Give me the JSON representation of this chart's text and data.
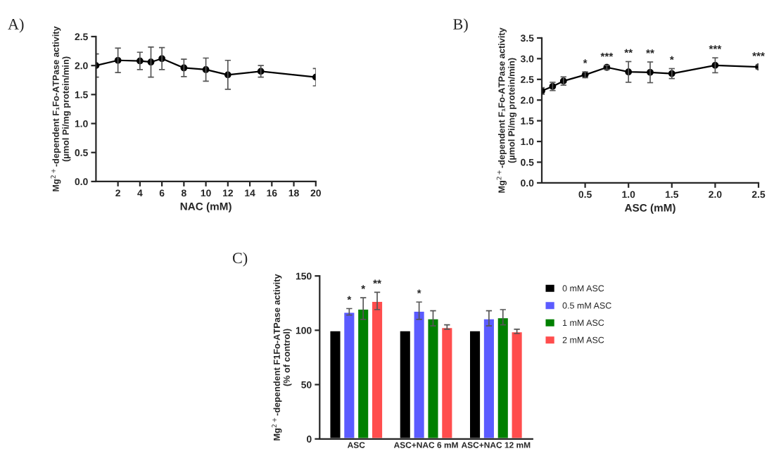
{
  "chart_data": [
    {
      "type": "line",
      "title": "A)",
      "xlabel": "NAC (mM)",
      "ylabel": "Mg$^{2+}$-dependent F₁Fo-ATPase activity\n(µmol Pi/mg protein/min)",
      "xlim": [
        0,
        20
      ],
      "xticks": [
        2,
        4,
        6,
        8,
        10,
        12,
        14,
        16,
        18,
        20
      ],
      "ylim": [
        0,
        2.5
      ],
      "yticks": [
        {
          "value": 0,
          "label": "0.0"
        },
        0.5,
        {
          "value": 1,
          "label": "1.0"
        },
        1.5,
        {
          "value": 2,
          "label": "2.0"
        },
        2.5
      ],
      "marker": "circle",
      "grid": false,
      "legend": false,
      "x": [
        0,
        2,
        4,
        5,
        6,
        8,
        10,
        12,
        15,
        20
      ],
      "series": [
        {
          "color": "#000000",
          "values": [
            2.0,
            2.09,
            2.08,
            2.06,
            2.12,
            1.96,
            1.93,
            1.84,
            1.9,
            1.8
          ],
          "errors": [
            0.2,
            0.21,
            0.15,
            0.26,
            0.19,
            0.15,
            0.2,
            0.25,
            0.1,
            0.15
          ]
        }
      ]
    },
    {
      "type": "line",
      "title": "B)",
      "xlabel": "ASC (mM)",
      "ylabel": "Mg$^{2+}$-dependent F₁Fo-ATPase activity\n(µmol Pi/mg protein/min)",
      "xlim": [
        0,
        2.5
      ],
      "xticks": [
        0.5,
        {
          "value": 1,
          "label": "1.0"
        },
        1.5,
        {
          "value": 2,
          "label": "2.0"
        },
        2.5
      ],
      "ylim": [
        0,
        3.5
      ],
      "yticks": [
        {
          "value": 0,
          "label": "0.0"
        },
        0.5,
        {
          "value": 1,
          "label": "1.0"
        },
        1.5,
        {
          "value": 2,
          "label": "2.0"
        },
        2.5,
        {
          "value": 3,
          "label": "3.0"
        },
        3.5
      ],
      "marker": "circle",
      "grid": false,
      "legend": false,
      "x": [
        0,
        0.125,
        0.25,
        0.5,
        0.75,
        1.0,
        1.25,
        1.5,
        2.0,
        2.5
      ],
      "series": [
        {
          "color": "#000000",
          "values": [
            2.22,
            2.33,
            2.46,
            2.61,
            2.79,
            2.68,
            2.67,
            2.64,
            2.84,
            2.8
          ],
          "errors": [
            0.08,
            0.1,
            0.1,
            0.07,
            0.05,
            0.25,
            0.25,
            0.12,
            0.18,
            0.05
          ],
          "value_labels": [
            null,
            null,
            null,
            "*",
            "***",
            "**",
            "**",
            "*",
            "***",
            "***"
          ]
        }
      ]
    },
    {
      "type": "bar",
      "title": "C)",
      "ylabel": "Mg$^{2+}$-dependent F1Fo-ATPase activity\n(% of control)",
      "ylim": [
        0,
        150
      ],
      "yticks": [
        0,
        50,
        100,
        150
      ],
      "grid": false,
      "legend": "right",
      "categories": [
        "ASC",
        "ASC+NAC 6 mM",
        "ASC+NAC 12 mM"
      ],
      "series": [
        {
          "name": "0 mM ASC",
          "color": "#000000",
          "values": [
            100,
            100,
            100
          ]
        },
        {
          "name": "0.5 mM ASC",
          "color": "#5b5bff",
          "values": [
            117,
            118,
            111
          ],
          "errors": [
            3,
            8,
            7
          ],
          "value_labels": [
            "*",
            "*",
            null
          ]
        },
        {
          "name": "1 mM ASC",
          "color": "#008000",
          "values": [
            120,
            111,
            112
          ],
          "errors": [
            10,
            7,
            7
          ],
          "value_labels": [
            "*",
            null,
            null
          ]
        },
        {
          "name": "2 mM ASC",
          "color": "#ff4d4d",
          "values": [
            127,
            103,
            99
          ],
          "errors": [
            8,
            2,
            2
          ],
          "value_labels": [
            "**",
            null,
            null
          ]
        }
      ]
    }
  ]
}
